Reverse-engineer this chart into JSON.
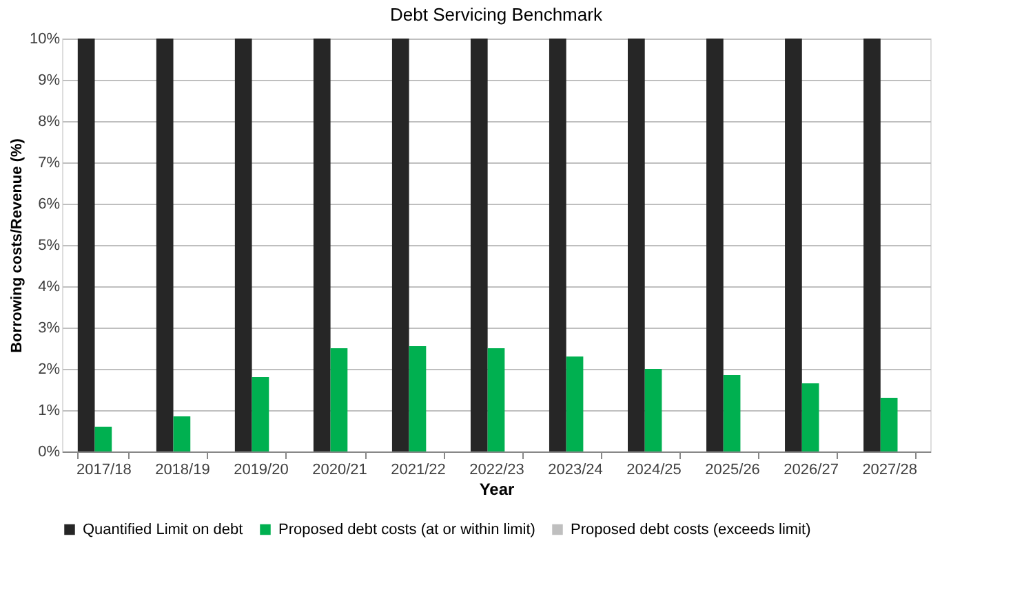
{
  "chart_data": {
    "type": "bar",
    "title": "Debt Servicing Benchmark",
    "xlabel": "Year",
    "ylabel": "Borrowing costs/Revenue (%)",
    "categories": [
      "2017/18",
      "2018/19",
      "2019/20",
      "2020/21",
      "2021/22",
      "2022/23",
      "2023/24",
      "2024/25",
      "2025/26",
      "2026/27",
      "2027/28"
    ],
    "series": [
      {
        "name": "Quantified Limit on debt",
        "color": "#262626",
        "values": [
          10,
          10,
          10,
          10,
          10,
          10,
          10,
          10,
          10,
          10,
          10
        ]
      },
      {
        "name": "Proposed debt costs (at or within limit)",
        "color": "#00b050",
        "values": [
          0.6,
          0.85,
          1.8,
          2.5,
          2.55,
          2.5,
          2.3,
          2.0,
          1.85,
          1.65,
          1.3
        ]
      },
      {
        "name": "Proposed debt costs (exceeds limit)",
        "color": "#bfbfbf",
        "values": [
          null,
          null,
          null,
          null,
          null,
          null,
          null,
          null,
          null,
          null,
          null
        ]
      }
    ],
    "ylim": [
      0,
      10
    ],
    "yticks": [
      {
        "value": 0,
        "label": "0%"
      },
      {
        "value": 1,
        "label": "1%"
      },
      {
        "value": 2,
        "label": "2%"
      },
      {
        "value": 3,
        "label": "3%"
      },
      {
        "value": 4,
        "label": "4%"
      },
      {
        "value": 5,
        "label": "5%"
      },
      {
        "value": 6,
        "label": "6%"
      },
      {
        "value": 7,
        "label": "7%"
      },
      {
        "value": 8,
        "label": "8%"
      },
      {
        "value": 9,
        "label": "9%"
      },
      {
        "value": 10,
        "label": "10%"
      }
    ],
    "grid": "y",
    "legend": "bottom"
  }
}
